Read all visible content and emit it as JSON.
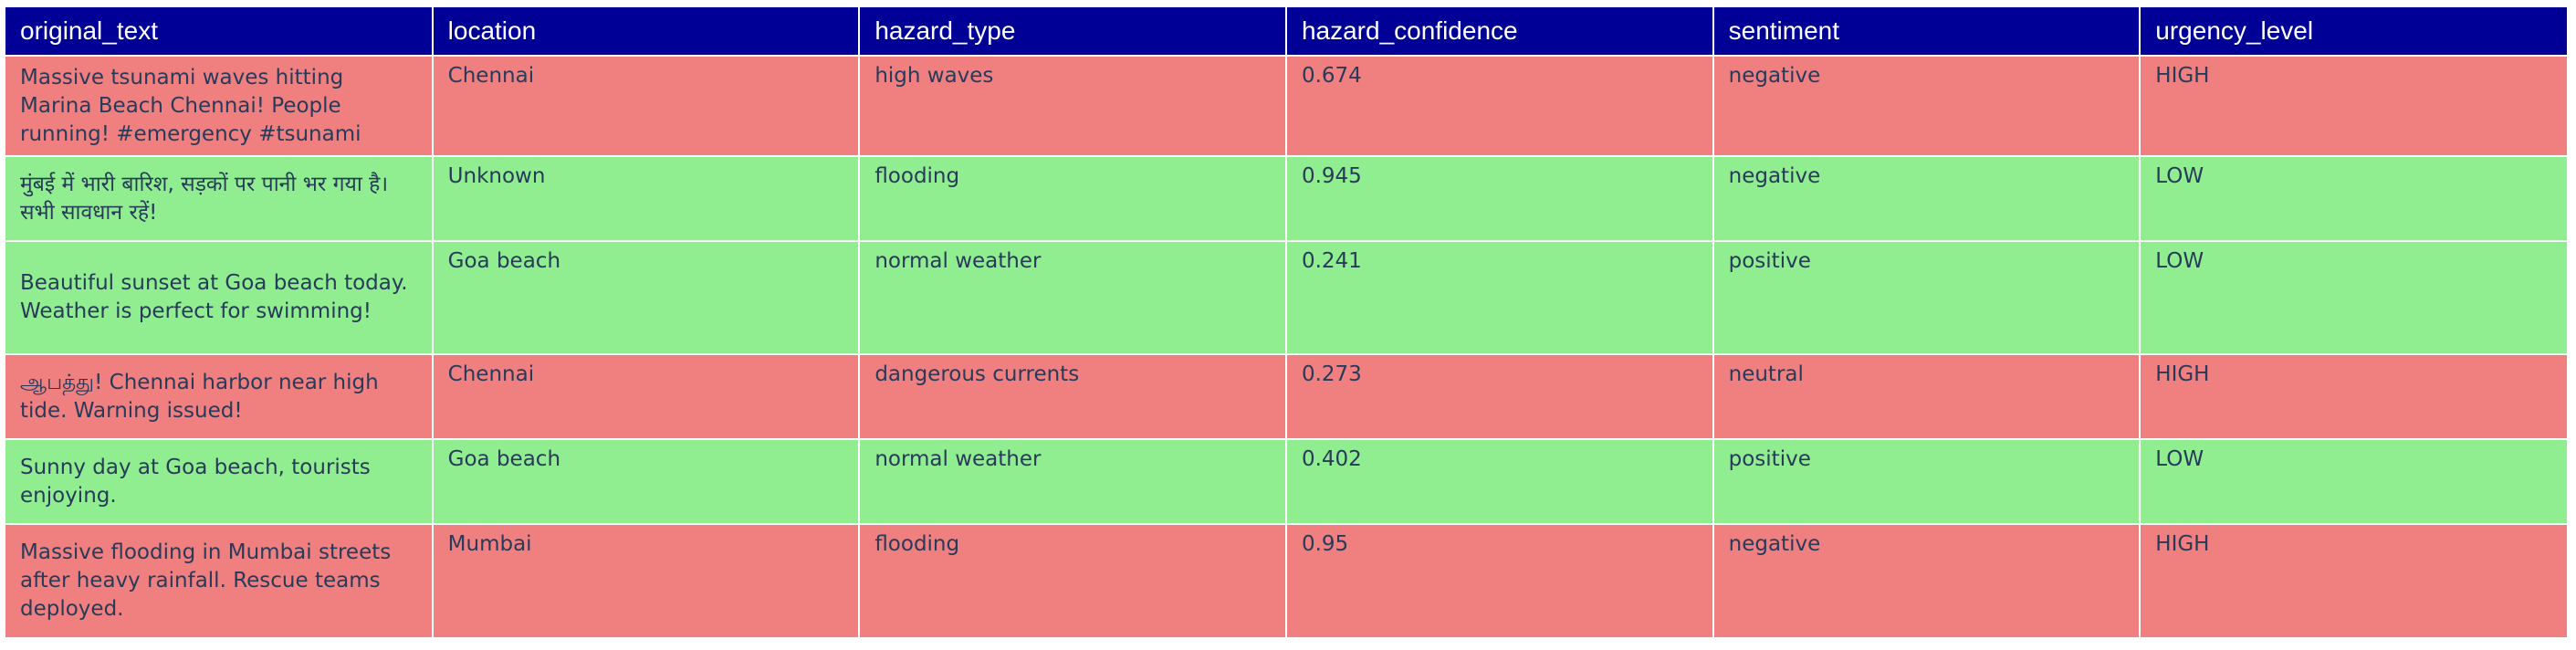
{
  "colors": {
    "header_bg": "#000096",
    "header_text": "#ffffff",
    "high_row": "#f08080",
    "low_row": "#90ee90",
    "cell_text": "#283a5a"
  },
  "columns": [
    "original_text",
    "location",
    "hazard_type",
    "hazard_confidence",
    "sentiment",
    "urgency_level"
  ],
  "rows": [
    {
      "original_text": "Massive tsunami waves hitting Marina Beach Chennai! People running! #emergency #tsunami",
      "location": "Chennai",
      "hazard_type": "high waves",
      "hazard_confidence": "0.674",
      "sentiment": "negative",
      "urgency_level": "HIGH"
    },
    {
      "original_text": "मुंबई में भारी बारिश, सड़कों पर पानी भर गया है। सभी सावधान रहें!",
      "location": "Unknown",
      "hazard_type": "flooding",
      "hazard_confidence": "0.945",
      "sentiment": "negative",
      "urgency_level": "LOW"
    },
    {
      "original_text": "Beautiful sunset at Goa beach today. Weather is perfect for swimming!",
      "location": "Goa beach",
      "hazard_type": "normal weather",
      "hazard_confidence": "0.241",
      "sentiment": "positive",
      "urgency_level": "LOW"
    },
    {
      "original_text": "ஆபத்து! Chennai harbor near high tide. Warning issued!",
      "location": "Chennai",
      "hazard_type": "dangerous currents",
      "hazard_confidence": "0.273",
      "sentiment": "neutral",
      "urgency_level": "HIGH"
    },
    {
      "original_text": "Sunny day at Goa beach, tourists enjoying.",
      "location": "Goa beach",
      "hazard_type": "normal weather",
      "hazard_confidence": "0.402",
      "sentiment": "positive",
      "urgency_level": "LOW"
    },
    {
      "original_text": "Massive flooding in Mumbai streets after heavy rainfall. Rescue teams deployed.",
      "location": "Mumbai",
      "hazard_type": "flooding",
      "hazard_confidence": "0.95",
      "sentiment": "negative",
      "urgency_level": "HIGH"
    }
  ]
}
